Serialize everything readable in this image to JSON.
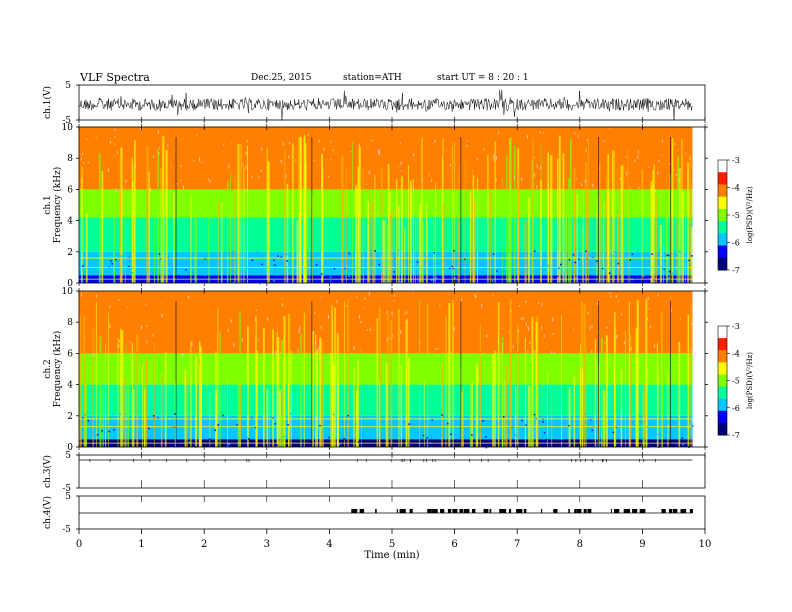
{
  "header": {
    "title": "VLF  Spectra",
    "date": "Dec.25, 2015",
    "station": "station=ATH",
    "start": "start  UT  =   8  : 20 : 1"
  },
  "panels": {
    "ch1_wave": {
      "ylabel": "ch.1(V)",
      "yticks": [
        "5",
        "-5"
      ]
    },
    "ch1_spec": {
      "ylabel_top": "ch.1",
      "ylabel": "Frequency  (kHz)",
      "yticks": [
        "10",
        "8",
        "6",
        "4",
        "2",
        "0"
      ]
    },
    "ch2_spec": {
      "ylabel_top": "ch.2",
      "ylabel": "Frequency  (kHz)",
      "yticks": [
        "10",
        "8",
        "6",
        "4",
        "2",
        "0"
      ]
    },
    "ch3_wave": {
      "ylabel": "ch.3(V)",
      "yticks": [
        "5",
        "-5"
      ]
    },
    "ch4_wave": {
      "ylabel": "ch.4(V)",
      "yticks": [
        "5",
        "-5"
      ]
    }
  },
  "colorbar": {
    "ticks": [
      "-3",
      "-4",
      "-5",
      "-6",
      "-7"
    ],
    "label": "log(PSD)(V²/Hz)",
    "colors": [
      "#000078",
      "#0000ff",
      "#00c8ff",
      "#00ff96",
      "#80ff00",
      "#ffff00",
      "#ff8000",
      "#ff2000",
      "#ffffff"
    ]
  },
  "xaxis": {
    "label": "Time  (min)",
    "ticks": [
      "0",
      "1",
      "2",
      "3",
      "4",
      "5",
      "6",
      "7",
      "8",
      "9",
      "10"
    ]
  },
  "chart_data": {
    "type": "heatmap",
    "title": "VLF  Spectra",
    "xlabel": "Time  (min)",
    "xlim": [
      0,
      10
    ],
    "data_end_min": 9.8,
    "channels": [
      {
        "name": "ch.1",
        "kind": "waveform",
        "ylabel": "ch.1(V)",
        "ylim": [
          -5,
          5
        ]
      },
      {
        "name": "ch.1",
        "kind": "spectrogram",
        "ylabel": "Frequency  (kHz)",
        "ylim": [
          0,
          10
        ],
        "zlabel": "log(PSD)(V²/Hz)",
        "zlim": [
          -7,
          -3
        ],
        "band_levels": [
          {
            "freq_khz": [
              0.0,
              0.5
            ],
            "log_psd": -6.5
          },
          {
            "freq_khz": [
              0.5,
              2.0
            ],
            "log_psd": -6.0
          },
          {
            "freq_khz": [
              2.0,
              4.2
            ],
            "log_psd": -5.4
          },
          {
            "freq_khz": [
              4.2,
              6.0
            ],
            "log_psd": -4.6
          },
          {
            "freq_khz": [
              6.0,
              10.0
            ],
            "log_psd": -3.8
          }
        ],
        "hum_lines_khz": [
          0.25,
          1.0,
          1.6
        ]
      },
      {
        "name": "ch.2",
        "kind": "spectrogram",
        "ylabel": "Frequency  (kHz)",
        "ylim": [
          0,
          10
        ],
        "zlabel": "log(PSD)(V²/Hz)",
        "zlim": [
          -7,
          -3
        ],
        "band_levels": [
          {
            "freq_khz": [
              0.0,
              0.5
            ],
            "log_psd": -6.6
          },
          {
            "freq_khz": [
              0.5,
              2.0
            ],
            "log_psd": -6.0
          },
          {
            "freq_khz": [
              2.0,
              4.0
            ],
            "log_psd": -5.4
          },
          {
            "freq_khz": [
              4.0,
              6.0
            ],
            "log_psd": -4.6
          },
          {
            "freq_khz": [
              6.0,
              10.0
            ],
            "log_psd": -3.8
          }
        ],
        "hum_lines_khz": [
          0.25,
          1.3,
          1.8
        ]
      },
      {
        "name": "ch.3",
        "kind": "waveform",
        "ylabel": "ch.3(V)",
        "ylim": [
          -5,
          5
        ]
      },
      {
        "name": "ch.4",
        "kind": "waveform",
        "ylabel": "ch.4(V)",
        "ylim": [
          -5,
          5
        ],
        "pulse_interval_min": [
          4.35,
          9.8
        ]
      }
    ]
  }
}
